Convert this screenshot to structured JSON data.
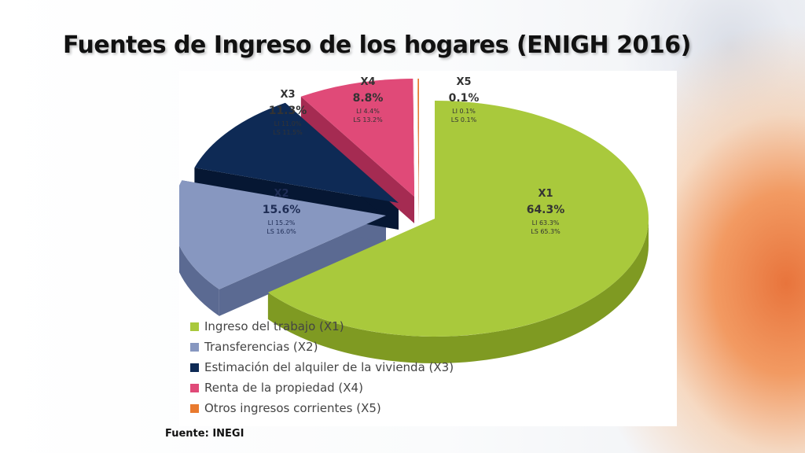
{
  "slide": {
    "title": "Fuentes de Ingreso de los hogares (ENIGH 2016)",
    "source": "Fuente: INEGI"
  },
  "chart_data": {
    "type": "pie",
    "title": "",
    "slices": [
      {
        "key": "X1",
        "label": "X1",
        "value": 64.3,
        "value_label": "64.3%",
        "li": "LI 63.3%",
        "ls": "LS 65.3%",
        "legend": "Ingreso del trabajo (X1)",
        "color": "#a9c93c",
        "side_color": "#7f9a22"
      },
      {
        "key": "X2",
        "label": "X2",
        "value": 15.6,
        "value_label": "15.6%",
        "li": "LI 15.2%",
        "ls": "LS 16.0%",
        "legend": "Transferencias  (X2)",
        "color": "#8797c0",
        "side_color": "#5b6a92"
      },
      {
        "key": "X3",
        "label": "X3",
        "value": 11.3,
        "value_label": "11.3%",
        "li": "LI 11.0%",
        "ls": "LS 11.5%",
        "legend": "Estimación del alquiler de la vivienda (X3)",
        "color": "#0e2a55",
        "side_color": "#061733"
      },
      {
        "key": "X4",
        "label": "X4",
        "value": 8.8,
        "value_label": "8.8%",
        "li": "LI 4.4%",
        "ls": "LS 13.2%",
        "legend": "Renta de la propiedad (X4)",
        "color": "#e04a78",
        "side_color": "#a52b52"
      },
      {
        "key": "X5",
        "label": "X5",
        "value": 0.1,
        "value_label": "0.1%",
        "li": "LI 0.1%",
        "ls": "LS 0.1%",
        "legend": "Otros ingresos corrientes  (X5)",
        "color": "#e97a2e",
        "side_color": "#b4561a"
      }
    ],
    "legend_position": "bottom-left"
  }
}
